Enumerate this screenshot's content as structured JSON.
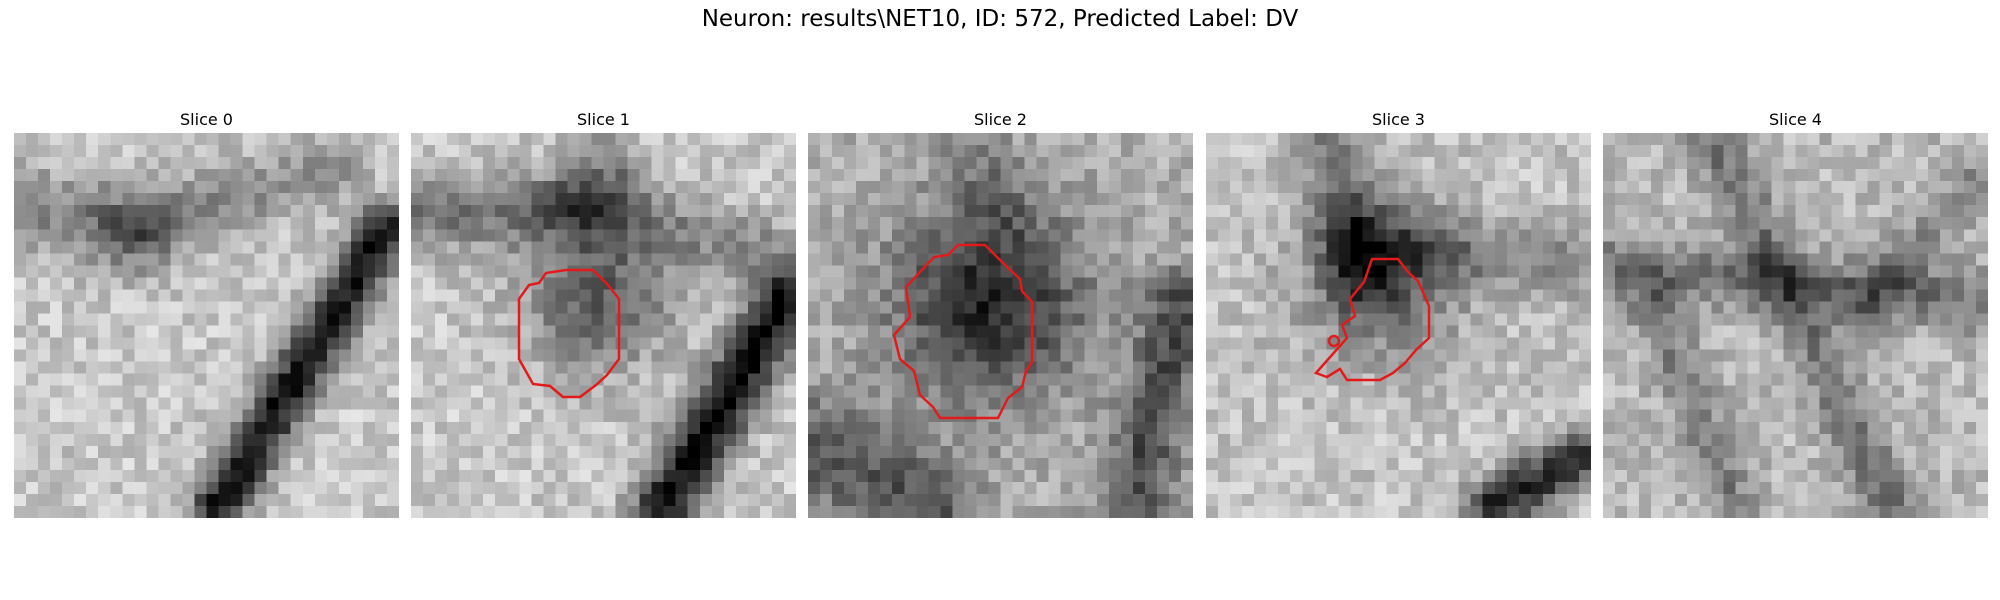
{
  "figure": {
    "title": "Neuron: results\\NET10, ID: 572, Predicted Label: DV"
  },
  "panels": [
    {
      "label": "Slice 0",
      "contour_color": "#e31a1c",
      "has_contour": false
    },
    {
      "label": "Slice 1",
      "contour_color": "#e31a1c",
      "has_contour": true
    },
    {
      "label": "Slice 2",
      "contour_color": "#e31a1c",
      "has_contour": true
    },
    {
      "label": "Slice 3",
      "contour_color": "#e31a1c",
      "has_contour": true
    },
    {
      "label": "Slice 4",
      "contour_color": "#e31a1c",
      "has_contour": false
    }
  ],
  "colormap": "gray"
}
